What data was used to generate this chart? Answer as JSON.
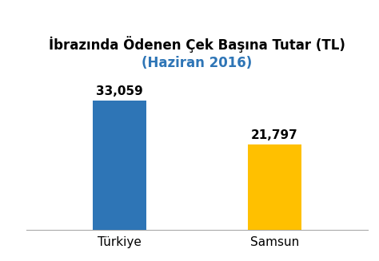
{
  "categories": [
    "Türkiye",
    "Samsun"
  ],
  "values": [
    33059,
    21797
  ],
  "bar_colors": [
    "#2e75b6",
    "#ffc000"
  ],
  "labels": [
    "33,059",
    "21,797"
  ],
  "title_line1": "İbrazında Ödenen Çek Başına Tutar (TL)",
  "title_line2": "(Haziran 2016)",
  "title_color1": "#000000",
  "title_color2": "#2e75b6",
  "title_fontsize": 12,
  "subtitle_fontsize": 12,
  "label_fontsize": 11,
  "tick_fontsize": 11,
  "ylim": [
    0,
    40000
  ],
  "background_color": "#ffffff",
  "bar_width": 0.35
}
